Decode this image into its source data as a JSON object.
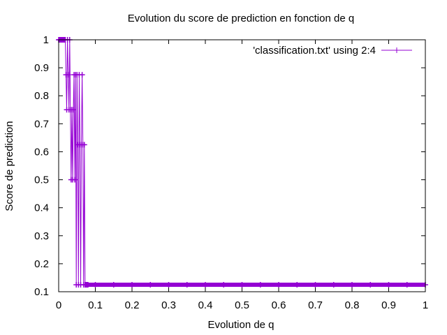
{
  "chart_data": {
    "type": "line",
    "title": "Evolution du score de prediction en fonction de q",
    "xlabel": "Evolution de q",
    "ylabel": "Score de prediction",
    "xlim": [
      0,
      1
    ],
    "ylim": [
      0.1,
      1
    ],
    "x_ticks": [
      "0",
      "0.1",
      "0.2",
      "0.3",
      "0.4",
      "0.5",
      "0.6",
      "0.7",
      "0.8",
      "0.9",
      "1"
    ],
    "y_ticks": [
      "0.1",
      "0.2",
      "0.3",
      "0.4",
      "0.5",
      "0.6",
      "0.7",
      "0.8",
      "0.9",
      "1"
    ],
    "grid": false,
    "legend": {
      "position": "top-right"
    },
    "series": [
      {
        "name": "'classification.txt' using 2:4",
        "color": "#9400d3",
        "marker": "plus",
        "x": [
          0.0,
          0.002,
          0.004,
          0.006,
          0.008,
          0.01,
          0.012,
          0.014,
          0.016,
          0.018,
          0.02,
          0.022,
          0.024,
          0.026,
          0.028,
          0.03,
          0.032,
          0.034,
          0.036,
          0.038,
          0.04,
          0.042,
          0.044,
          0.046,
          0.048,
          0.05,
          0.052,
          0.054,
          0.056,
          0.058,
          0.06,
          0.062,
          0.064,
          0.066,
          0.068,
          0.07,
          0.072,
          0.074,
          0.076,
          0.078,
          0.08,
          0.1,
          0.15,
          0.2,
          0.25,
          0.3,
          0.35,
          0.4,
          0.45,
          0.5,
          0.55,
          0.6,
          0.65,
          0.7,
          0.75,
          0.8,
          0.85,
          0.9,
          0.95,
          1.0
        ],
        "y": [
          1.0,
          1.0,
          1.0,
          1.0,
          1.0,
          1.0,
          1.0,
          1.0,
          1.0,
          1.0,
          0.875,
          0.75,
          1.0,
          0.875,
          0.75,
          1.0,
          0.75,
          0.5,
          0.75,
          0.5,
          0.75,
          0.875,
          0.5,
          0.875,
          0.125,
          0.875,
          0.625,
          0.125,
          0.875,
          0.625,
          0.125,
          0.625,
          0.875,
          0.625,
          0.125,
          0.625,
          0.125,
          0.125,
          0.125,
          0.125,
          0.125,
          0.125,
          0.125,
          0.125,
          0.125,
          0.125,
          0.125,
          0.125,
          0.125,
          0.125,
          0.125,
          0.125,
          0.125,
          0.125,
          0.125,
          0.125,
          0.125,
          0.125,
          0.125,
          0.125
        ]
      }
    ]
  }
}
